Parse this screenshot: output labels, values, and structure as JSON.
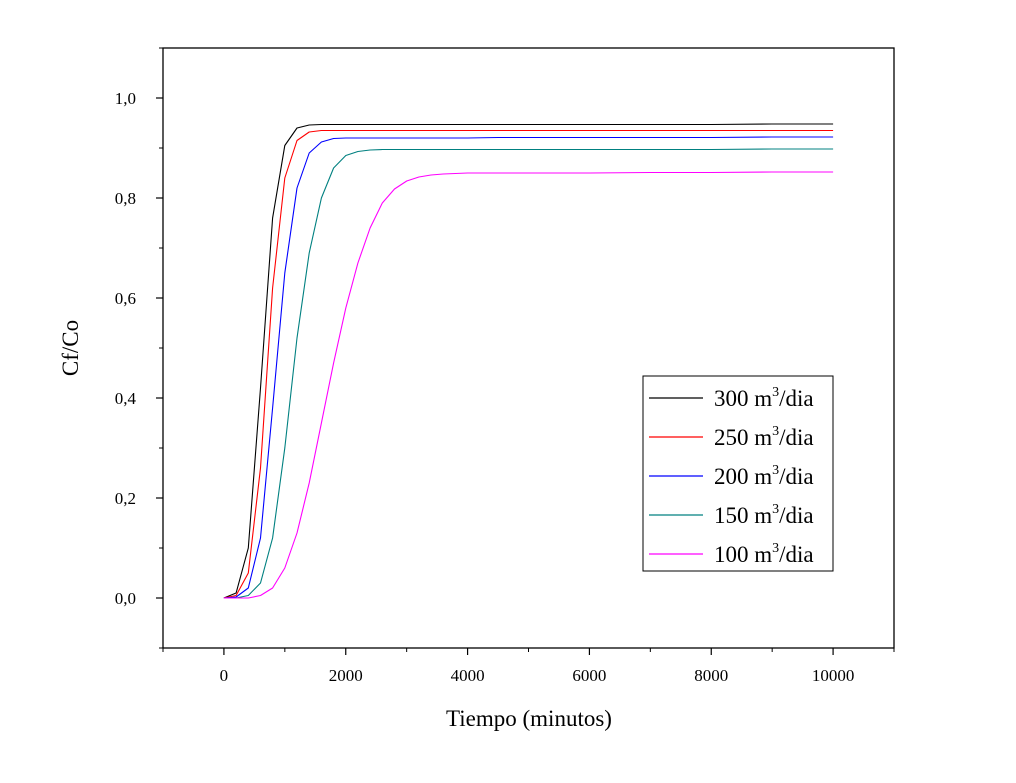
{
  "chart_data": {
    "type": "line",
    "title": "",
    "xlabel": "Tiempo (minutos)",
    "ylabel": "Cf/Co",
    "xlim": [
      -1000,
      11000
    ],
    "ylim": [
      -0.1,
      1.1
    ],
    "xticks": [
      0,
      2000,
      4000,
      6000,
      8000,
      10000
    ],
    "xtick_labels": [
      "0",
      "2000",
      "4000",
      "6000",
      "8000",
      "10000"
    ],
    "yticks": [
      0.0,
      0.2,
      0.4,
      0.6,
      0.8,
      1.0
    ],
    "ytick_labels": [
      "0,0",
      "0,2",
      "0,4",
      "0,6",
      "0,8",
      "1,0"
    ],
    "grid": false,
    "legend_position": "lower-right",
    "x": [
      0,
      200,
      400,
      600,
      800,
      1000,
      1200,
      1400,
      1600,
      1800,
      2000,
      2200,
      2400,
      2600,
      2800,
      3000,
      3200,
      3400,
      3600,
      3800,
      4000,
      4500,
      5000,
      6000,
      7000,
      8000,
      9000,
      10000
    ],
    "series": [
      {
        "name": "300 m³/dia",
        "legend_prefix": "300 m",
        "legend_sup": "3",
        "legend_suffix": "/dia",
        "color": "#000000",
        "values": [
          0.0,
          0.01,
          0.1,
          0.42,
          0.76,
          0.905,
          0.94,
          0.946,
          0.947,
          0.947,
          0.947,
          0.947,
          0.947,
          0.947,
          0.947,
          0.947,
          0.947,
          0.947,
          0.947,
          0.947,
          0.947,
          0.947,
          0.947,
          0.947,
          0.947,
          0.947,
          0.948,
          0.948
        ]
      },
      {
        "name": "250 m³/dia",
        "legend_prefix": "250 m",
        "legend_sup": "3",
        "legend_suffix": "/dia",
        "color": "#ff0000",
        "values": [
          0.0,
          0.005,
          0.05,
          0.26,
          0.62,
          0.84,
          0.915,
          0.932,
          0.935,
          0.935,
          0.935,
          0.935,
          0.935,
          0.935,
          0.935,
          0.935,
          0.935,
          0.935,
          0.935,
          0.935,
          0.935,
          0.935,
          0.935,
          0.935,
          0.935,
          0.935,
          0.935,
          0.935
        ]
      },
      {
        "name": "200 m³/dia",
        "legend_prefix": "200 m",
        "legend_sup": "3",
        "legend_suffix": "/dia",
        "color": "#0000ff",
        "values": [
          0.0,
          0.002,
          0.02,
          0.12,
          0.38,
          0.65,
          0.82,
          0.89,
          0.912,
          0.919,
          0.92,
          0.92,
          0.92,
          0.92,
          0.92,
          0.92,
          0.92,
          0.92,
          0.92,
          0.92,
          0.92,
          0.921,
          0.921,
          0.921,
          0.921,
          0.921,
          0.922,
          0.922
        ]
      },
      {
        "name": "150 m³/dia",
        "legend_prefix": "150 m",
        "legend_sup": "3",
        "legend_suffix": "/dia",
        "color": "#008080",
        "values": [
          0.0,
          0.0,
          0.005,
          0.03,
          0.12,
          0.3,
          0.52,
          0.69,
          0.8,
          0.86,
          0.885,
          0.893,
          0.896,
          0.897,
          0.897,
          0.897,
          0.897,
          0.897,
          0.897,
          0.897,
          0.897,
          0.897,
          0.897,
          0.897,
          0.897,
          0.897,
          0.898,
          0.898
        ]
      },
      {
        "name": "100 m³/dia",
        "legend_prefix": "100 m",
        "legend_sup": "3",
        "legend_suffix": "/dia",
        "color": "#ff00ff",
        "values": [
          0.0,
          0.0,
          0.0,
          0.005,
          0.02,
          0.06,
          0.13,
          0.23,
          0.35,
          0.47,
          0.58,
          0.67,
          0.74,
          0.79,
          0.818,
          0.834,
          0.842,
          0.846,
          0.848,
          0.849,
          0.85,
          0.85,
          0.85,
          0.85,
          0.851,
          0.851,
          0.852,
          0.852
        ]
      }
    ]
  }
}
